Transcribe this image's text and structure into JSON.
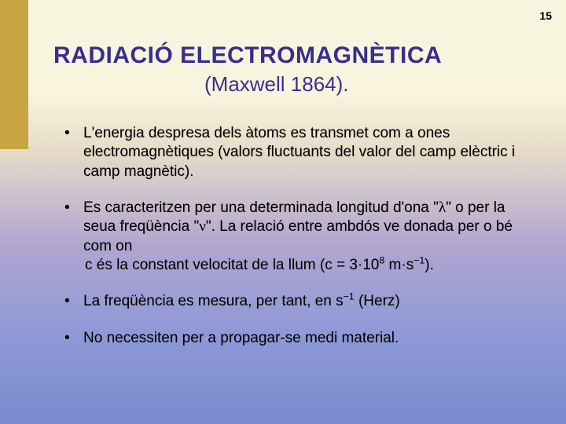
{
  "page_number": "15",
  "title": "RADIACIÓ ELECTROMAGNÈTICA",
  "subtitle": "(Maxwell 1864).",
  "bullets": {
    "b1": "L'energia despresa dels àtoms es transmet com a ones electromagnètiques (valors fluctuants del valor del camp elèctric i camp magnètic).",
    "b2_part1": "Es caracteritzen per una determinada longitud d'ona \"",
    "b2_lambda": "λ",
    "b2_part2": "\" o per la seua freqüència \"",
    "b2_nu": "ν",
    "b2_part3": "\". La relació entre ambdós ve donada per  o bé com  on",
    "b2_part4_a": " c és la constant velocitat de la llum (c = 3·10",
    "b2_sup1": "8",
    "b2_part4_b": " m·s",
    "b2_sup2": "−1",
    "b2_part4_c": ").",
    "b3_a": "La freqüència es mesura, per tant, en s",
    "b3_sup": "−1",
    "b3_b": " (Herz)",
    "b4": "No necessiten per a propagar-se medi material."
  },
  "colors": {
    "sidebar": "#c7a642",
    "title_color": "#3a2d8f",
    "gradient_top": "#f8f5de",
    "gradient_bottom": "#7a8acc"
  }
}
